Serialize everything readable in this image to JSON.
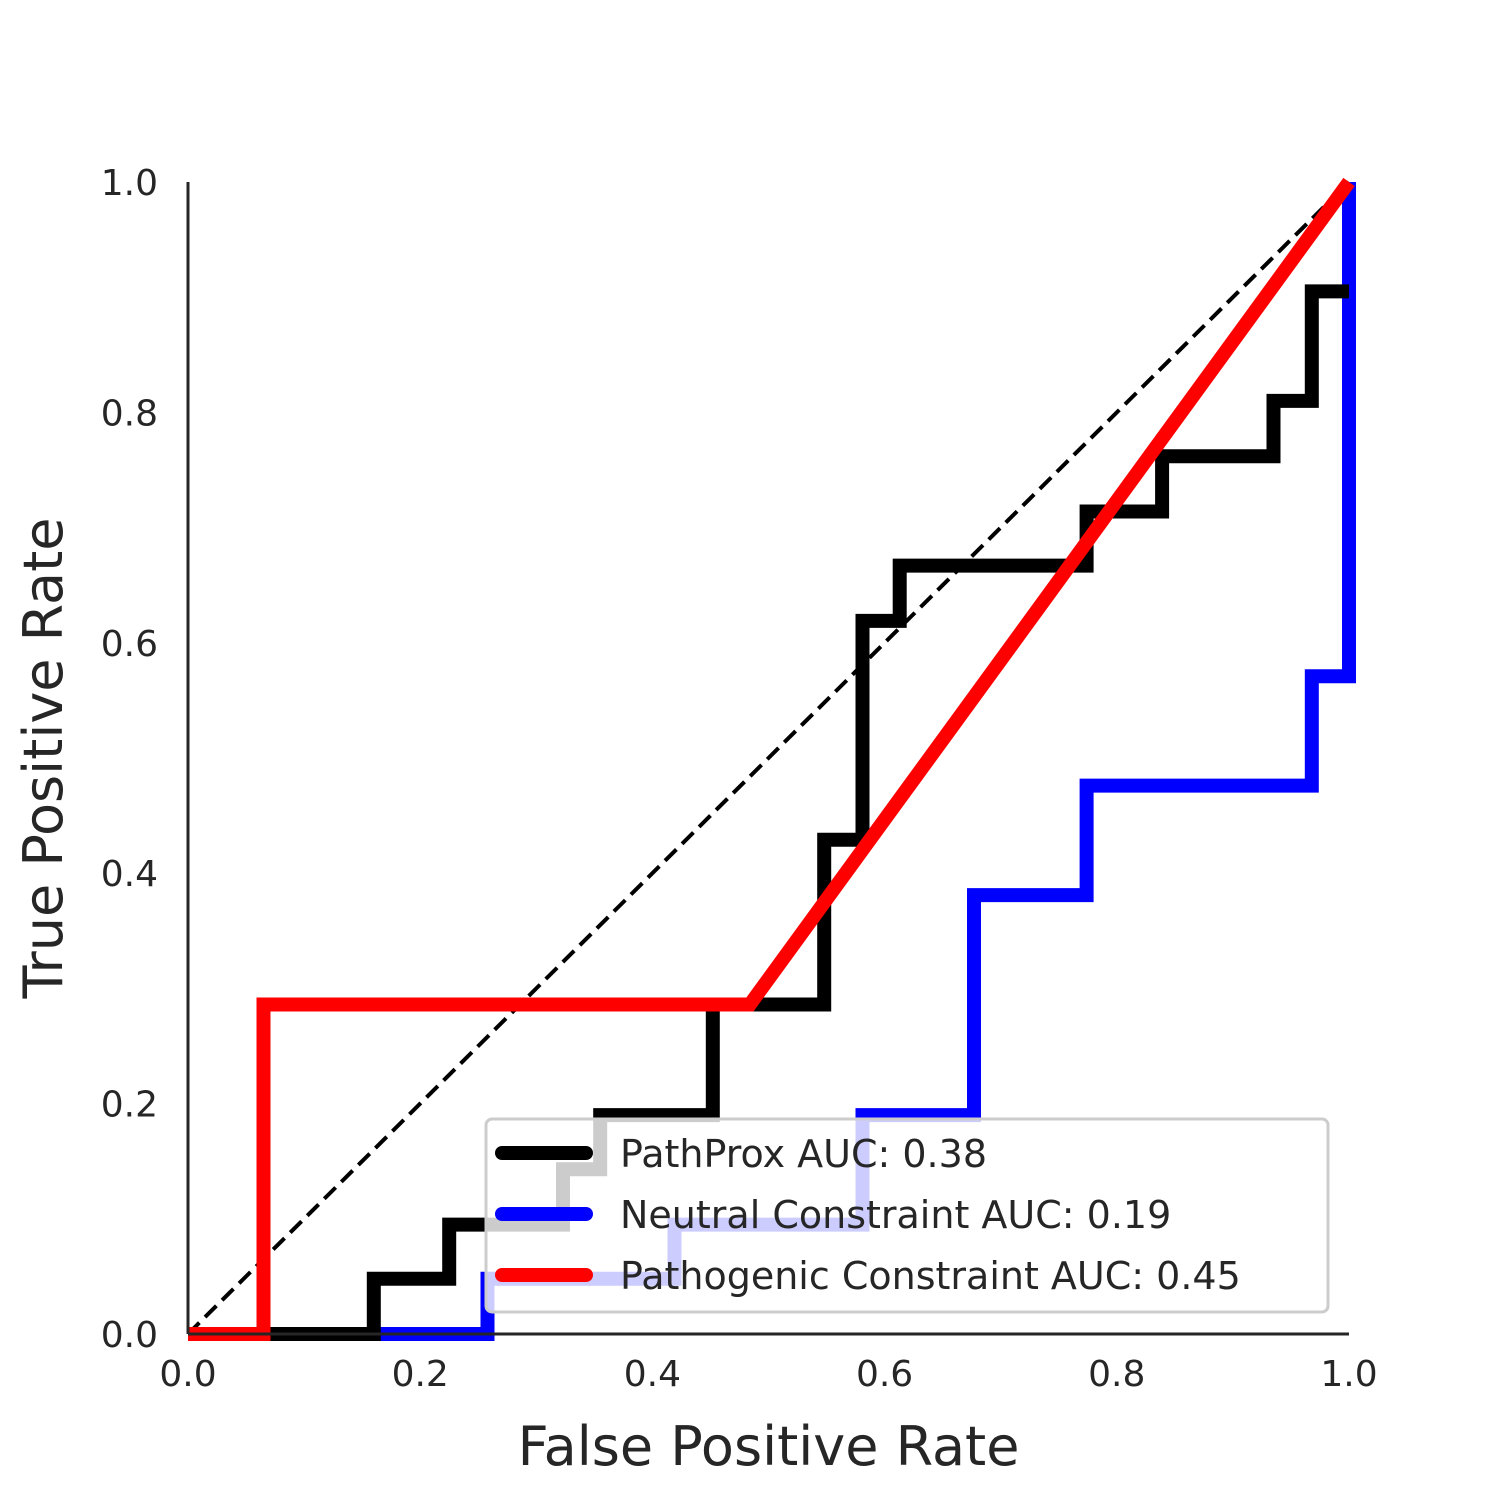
{
  "chart_data": {
    "type": "line",
    "xlabel": "False Positive Rate",
    "ylabel": "True Positive Rate",
    "xlim": [
      0.0,
      1.0
    ],
    "ylim": [
      0.0,
      1.0
    ],
    "xticks": [
      "0.0",
      "0.2",
      "0.4",
      "0.6",
      "0.8",
      "1.0"
    ],
    "yticks": [
      "0.0",
      "0.2",
      "0.4",
      "0.6",
      "0.8",
      "1.0"
    ],
    "grid": false,
    "legend_position": "lower-right",
    "reference_line": {
      "x": [
        0,
        1
      ],
      "y": [
        0,
        1
      ],
      "color": "#000000",
      "style": "dashed"
    },
    "series": [
      {
        "name": "PathProx AUC:  0.38",
        "color": "#000000",
        "x": [
          0,
          0.16,
          0.16,
          0.225,
          0.225,
          0.323,
          0.323,
          0.355,
          0.355,
          0.452,
          0.452,
          0.548,
          0.548,
          0.581,
          0.581,
          0.613,
          0.613,
          0.774,
          0.774,
          0.839,
          0.839,
          0.935,
          0.935,
          0.968,
          0.968,
          1.0
        ],
        "y": [
          0,
          0,
          0.048,
          0.048,
          0.095,
          0.095,
          0.143,
          0.143,
          0.19,
          0.19,
          0.286,
          0.286,
          0.429,
          0.429,
          0.619,
          0.619,
          0.667,
          0.667,
          0.714,
          0.714,
          0.762,
          0.762,
          0.81,
          0.81,
          0.905,
          0.905
        ]
      },
      {
        "name": "Neutral Constraint AUC:  0.19",
        "color": "#0000ff",
        "x": [
          0,
          0.258,
          0.258,
          0.419,
          0.419,
          0.581,
          0.581,
          0.677,
          0.677,
          0.774,
          0.774,
          0.968,
          0.968,
          1.0,
          1.0
        ],
        "y": [
          0,
          0,
          0.048,
          0.048,
          0.095,
          0.095,
          0.19,
          0.19,
          0.381,
          0.381,
          0.476,
          0.476,
          0.571,
          0.571,
          1.0
        ]
      },
      {
        "name": "Pathogenic Constraint AUC:  0.45",
        "color": "#ff0000",
        "x": [
          0,
          0.065,
          0.065,
          0.484,
          1.0
        ],
        "y": [
          0,
          0,
          0.286,
          0.286,
          1.0
        ]
      }
    ]
  }
}
